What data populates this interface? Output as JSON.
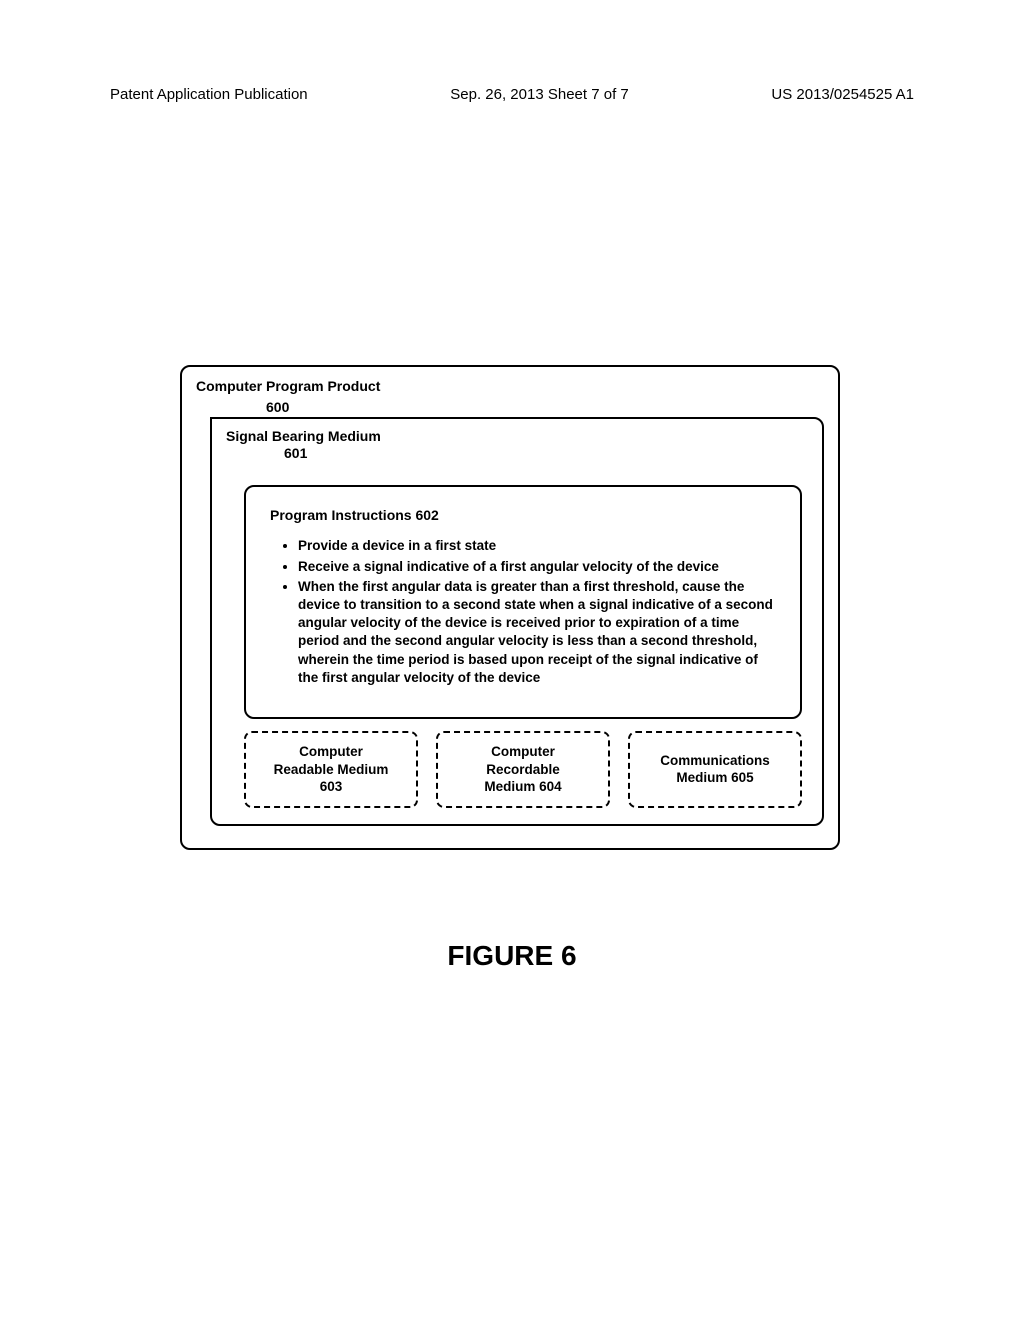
{
  "header": {
    "left": "Patent Application Publication",
    "center": "Sep. 26, 2013  Sheet 7 of 7",
    "right": "US 2013/0254525 A1"
  },
  "outer": {
    "title": "Computer Program Product",
    "ref": "600"
  },
  "signal": {
    "title": "Signal Bearing Medium",
    "ref": "601"
  },
  "instructions": {
    "title": "Program Instructions 602",
    "items": [
      "Provide a device in a first state",
      "Receive a signal indicative of a first angular velocity of the device",
      "When the first angular data is greater than a first threshold, cause the device to transition to a second state when a signal indicative of a second angular velocity of the device is received prior to expiration of a time period and the second angular velocity is less than a second threshold, wherein the time period is based upon receipt of the signal indicative of the first angular velocity of the device"
    ]
  },
  "media": {
    "box1_line1": "Computer",
    "box1_line2": "Readable Medium",
    "box1_line3": "603",
    "box2_line1": "Computer",
    "box2_line2": "Recordable",
    "box2_line3": "Medium 604",
    "box3_line1": "Communications",
    "box3_line2": "Medium 605"
  },
  "figure_caption": "FIGURE 6"
}
